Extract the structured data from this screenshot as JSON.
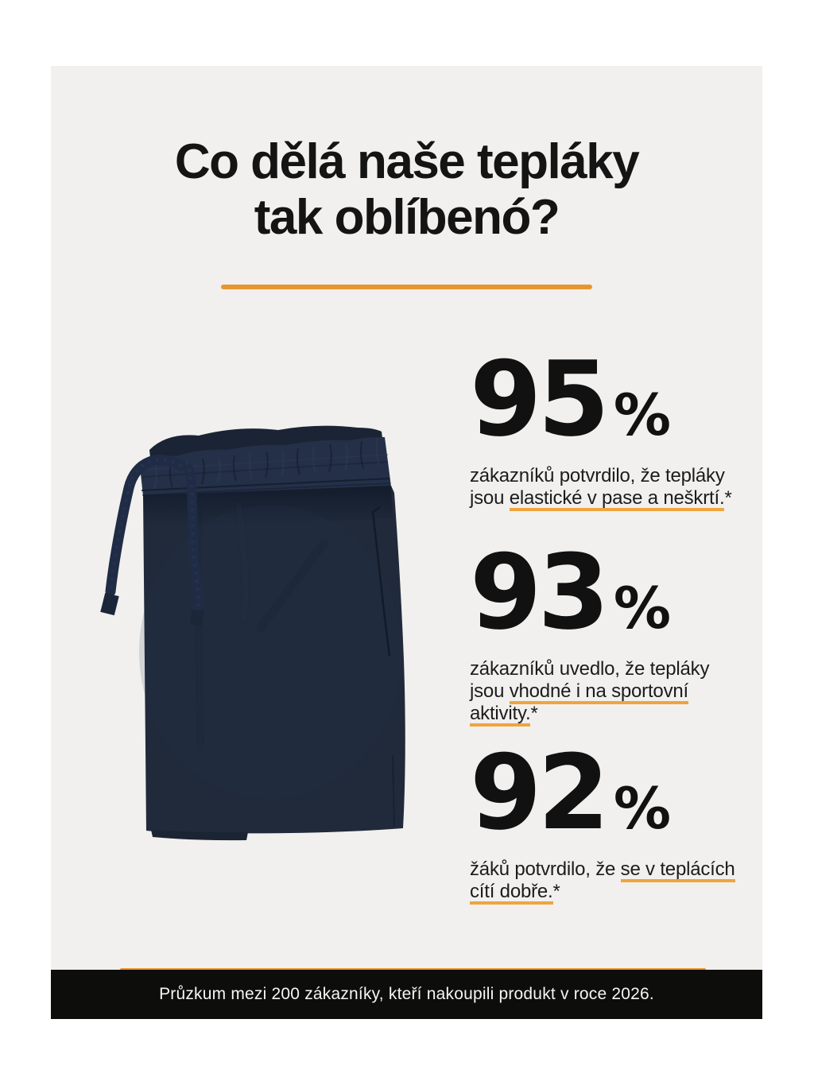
{
  "colors": {
    "accent_orange": "#E8952F",
    "underline_orange": "#EFA43F",
    "card_background": "#F1F0EE",
    "page_background": "#FFFFFF",
    "footer_background": "#0D0D0C",
    "text_dark": "#141414",
    "pants_navy": "#1F2939"
  },
  "header": {
    "title_line1": "Co dělá naše tepláky",
    "title_line2": "tak oblíbenó?"
  },
  "image": {
    "name": "folded-navy-sweatpants-with-drawstring"
  },
  "stats": [
    {
      "value": "95",
      "unit": "%",
      "description": [
        {
          "text": "zákazníků potvrdilo, že tepláky"
        },
        {
          "br": true
        },
        {
          "text": "jsou "
        },
        {
          "text": "elastické v pase a neškrtí.",
          "underline": true
        },
        {
          "text": "*"
        }
      ]
    },
    {
      "value": "93",
      "unit": "%",
      "description": [
        {
          "text": "zákazníků uvedlo, že tepláky"
        },
        {
          "br": true
        },
        {
          "text": "jsou "
        },
        {
          "text": "vhodné i na sportovní",
          "underline": true
        },
        {
          "br": true
        },
        {
          "text": "aktivity.",
          "underline": true
        },
        {
          "text": "*"
        }
      ]
    },
    {
      "value": "92",
      "unit": "%",
      "description": [
        {
          "text": "žáků potvrdilo, že "
        },
        {
          "text": "se v teplácích",
          "underline": true
        },
        {
          "br": true
        },
        {
          "text": "cítí dobře.",
          "underline": true
        },
        {
          "text": "*"
        }
      ]
    }
  ],
  "footer": {
    "note": "Průzkum mezi 200 zákazníky, kteří nakoupili produkt v roce 2026."
  }
}
